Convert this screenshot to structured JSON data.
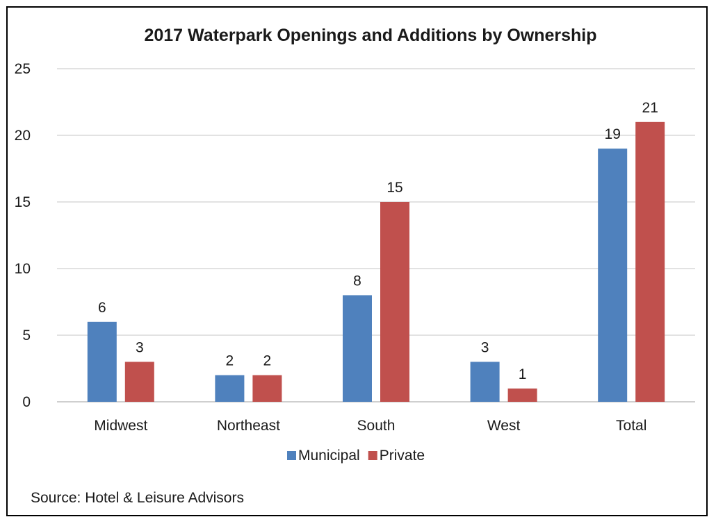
{
  "chart_data": {
    "type": "bar",
    "title": "2017 Waterpark Openings and Additions by Ownership",
    "categories": [
      "Midwest",
      "Northeast",
      "South",
      "West",
      "Total"
    ],
    "series": [
      {
        "name": "Municipal",
        "values": [
          6,
          2,
          8,
          3,
          19
        ],
        "color": "#4f81bd"
      },
      {
        "name": "Private",
        "values": [
          3,
          2,
          15,
          1,
          21
        ],
        "color": "#c0504d"
      }
    ],
    "yticks": [
      0,
      5,
      10,
      15,
      20,
      25
    ],
    "ylim": [
      0,
      25
    ],
    "grid": true,
    "legend_position": "bottom",
    "source": "Source:  Hotel & Leisure Advisors"
  }
}
